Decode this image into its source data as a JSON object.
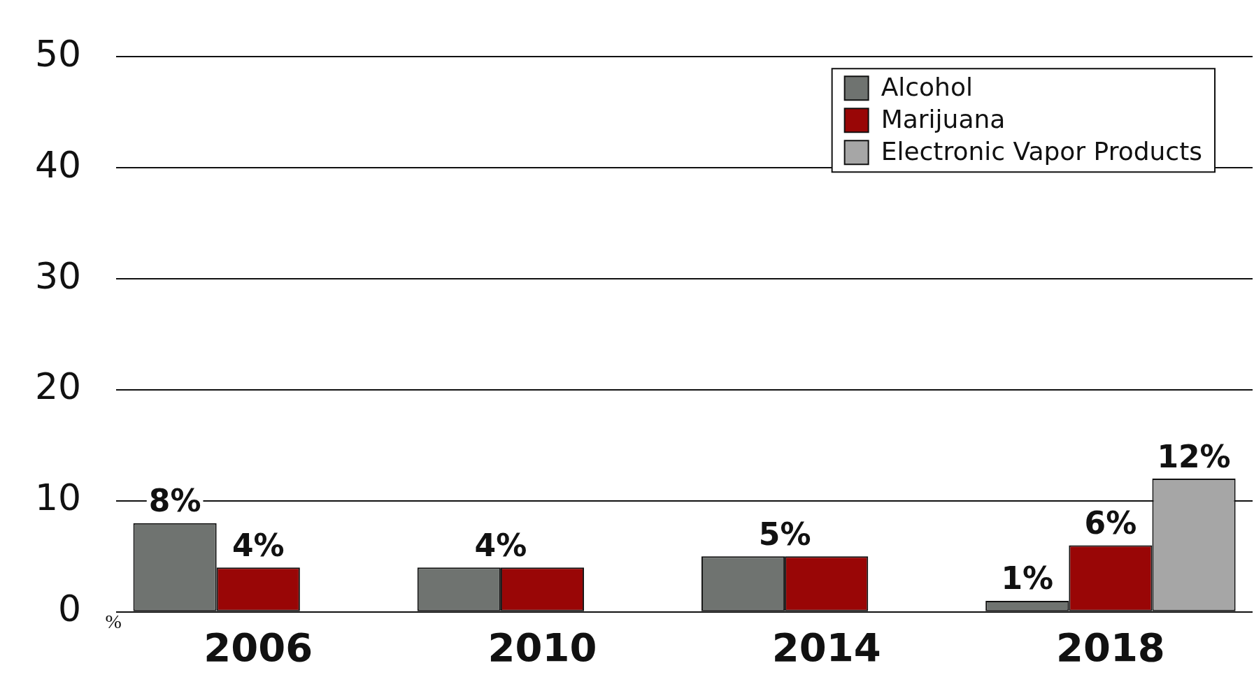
{
  "chart_data": {
    "type": "bar",
    "categories": [
      "2006",
      "2010",
      "2014",
      "2018"
    ],
    "series": [
      {
        "name": "Alcohol",
        "color": "#6f7370",
        "values": [
          8,
          4,
          5,
          1
        ],
        "value_labels": [
          "8%",
          "4%",
          "5%",
          "1%"
        ]
      },
      {
        "name": "Marijuana",
        "color": "#990606",
        "values": [
          4,
          4,
          5,
          6
        ],
        "value_labels": [
          "4%",
          null,
          null,
          "6%"
        ]
      },
      {
        "name": "Electronic Vapor Products",
        "color": "#a6a6a6",
        "values": [
          null,
          null,
          null,
          12
        ],
        "value_labels": [
          null,
          null,
          null,
          "12%"
        ]
      }
    ],
    "ylabel": "%",
    "ylim": [
      0,
      50
    ],
    "yticks": [
      0,
      10,
      20,
      30,
      40,
      50
    ],
    "grid": "y",
    "legend": "top right"
  }
}
